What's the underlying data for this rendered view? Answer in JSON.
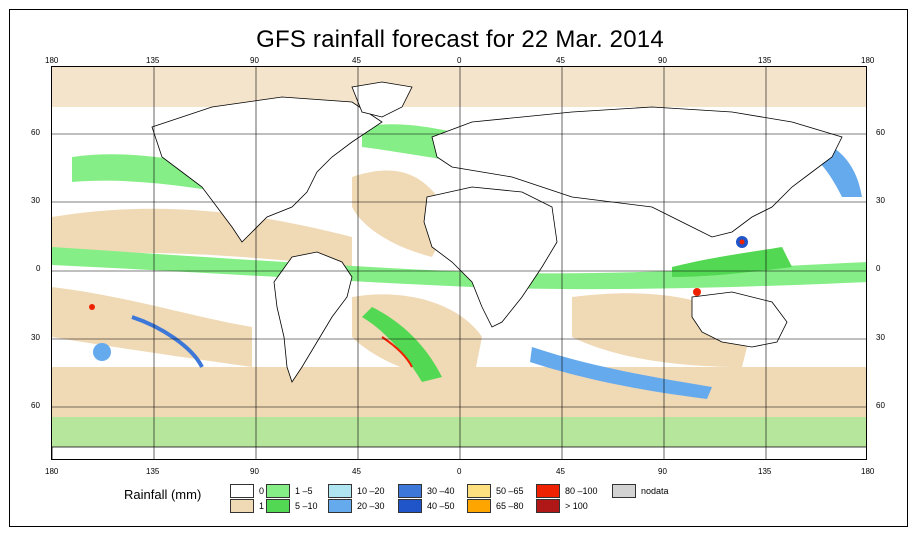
{
  "title": "GFS rainfall forecast for 22 Mar. 2014",
  "lon_ticks": [
    "180",
    "135",
    "90",
    "45",
    "0",
    "45",
    "90",
    "135",
    "180"
  ],
  "lat_ticks": [
    "60",
    "30",
    "0",
    "30",
    "60"
  ],
  "legend": {
    "title": "Rainfall (mm)",
    "items": [
      {
        "label": "0",
        "color": "#ffffff"
      },
      {
        "label": "1",
        "color": "#f0d9b5"
      },
      {
        "label": "1 –5",
        "color": "#86ee86"
      },
      {
        "label": "5 –10",
        "color": "#52d852"
      },
      {
        "label": "10 –20",
        "color": "#b0e6f2"
      },
      {
        "label": "20 –30",
        "color": "#66aaee"
      },
      {
        "label": "30 –40",
        "color": "#3d78d8"
      },
      {
        "label": "40 –50",
        "color": "#1f55c8"
      },
      {
        "label": "50 –65",
        "color": "#ffe080"
      },
      {
        "label": "65 –80",
        "color": "#ffa500"
      },
      {
        "label": "80 –100",
        "color": "#ee2200"
      },
      {
        "label": "> 100",
        "color": "#b01818"
      },
      {
        "label": "nodata",
        "color": "#d3d3d3"
      }
    ]
  }
}
